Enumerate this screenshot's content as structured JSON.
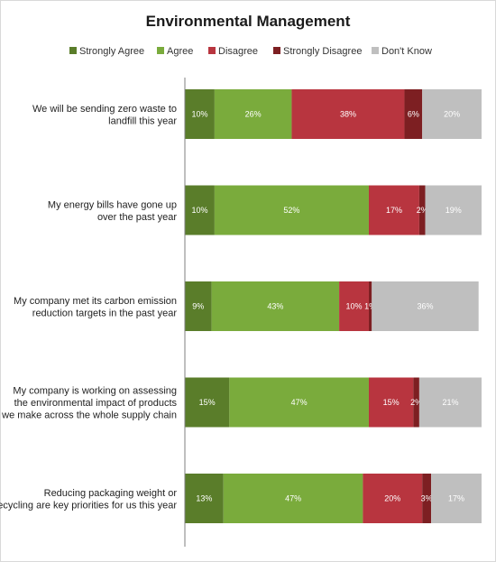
{
  "chart_data": {
    "type": "bar",
    "orientation": "horizontal",
    "stacked": "100%",
    "title": "Environmental Management",
    "legend_position": "top",
    "grid": false,
    "xlim": [
      0,
      100
    ],
    "categories": [
      [
        "We will be sending zero waste to",
        "landfill this year"
      ],
      [
        "My energy bills have gone up",
        "over the past year"
      ],
      [
        "My company met its carbon emission",
        "reduction targets in the past year"
      ],
      [
        "My company is working on assessing",
        "the environmental impact of products",
        "we make across the whole supply chain"
      ],
      [
        "Reducing packaging weight or",
        "recycling are key priorities for us this year"
      ]
    ],
    "series": [
      {
        "name": "Strongly Agree",
        "color": "#5a7d2a",
        "values": [
          10,
          10,
          9,
          15,
          13
        ],
        "labels": [
          "10%",
          "10%",
          "9%",
          "15%",
          "13%"
        ]
      },
      {
        "name": "Agree",
        "color": "#7aab3c",
        "values": [
          26,
          52,
          43,
          47,
          47
        ],
        "labels": [
          "26%",
          "52%",
          "43%",
          "47%",
          "47%"
        ]
      },
      {
        "name": "Disagree",
        "color": "#b8353f",
        "values": [
          38,
          17,
          10,
          15,
          20
        ],
        "labels": [
          "38%",
          "17%",
          "10%",
          "15%",
          "20%"
        ]
      },
      {
        "name": "Strongly Disagree",
        "color": "#7d1f22",
        "values": [
          6,
          2,
          1,
          2,
          3
        ],
        "labels": [
          "6%",
          "2%",
          "1%",
          "2%",
          "3%"
        ]
      },
      {
        "name": "Don't Know",
        "color": "#bfbfbf",
        "values": [
          20,
          19,
          36,
          21,
          17
        ],
        "labels": [
          "20%",
          "19%",
          "36%",
          "21%",
          "17%"
        ]
      }
    ]
  }
}
